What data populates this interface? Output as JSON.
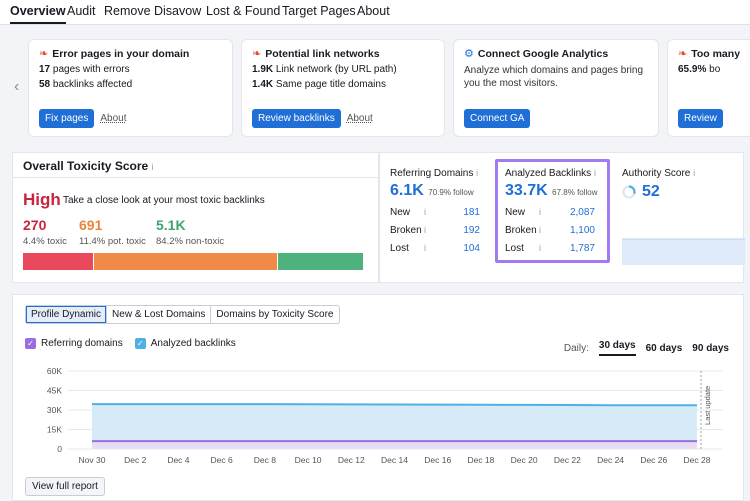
{
  "nav": {
    "tabs": [
      {
        "label": "Overview",
        "active": true
      },
      {
        "label": "Audit"
      },
      {
        "label": "Remove"
      },
      {
        "label": "Disavow"
      },
      {
        "label": "Lost & Found"
      },
      {
        "label": "Target Pages"
      },
      {
        "label": "About"
      }
    ]
  },
  "cards": [
    {
      "title": "Error pages in your domain",
      "icon": "fire-icon",
      "line1_num": "17",
      "line1_text": " pages with errors",
      "line2_num": "58",
      "line2_text": " backlinks affected",
      "button": "Fix pages",
      "about": "About"
    },
    {
      "title": "Potential link networks",
      "icon": "fire-icon",
      "line1_num": "1.9K",
      "line1_text": " Link network (by URL path)",
      "line2_num": "1.4K",
      "line2_text": " Same page title domains",
      "button": "Review backlinks",
      "about": "About"
    },
    {
      "title": "Connect Google Analytics",
      "icon": "gear-icon",
      "text": "Analyze which domains and pages bring you the most visitors.",
      "button": "Connect GA"
    },
    {
      "title": "Too many",
      "icon": "fire-icon",
      "line1_num": "65.9%",
      "line1_text": " bo",
      "button": "Review"
    }
  ],
  "toxicity": {
    "title": "Overall Toxicity Score",
    "info": "i",
    "level": "High",
    "desc": "Take a close look at your most toxic backlinks",
    "stats": [
      {
        "value": "270",
        "label": "4.4% toxic",
        "color": "#c8243d"
      },
      {
        "value": "691",
        "label": "11.4% pot. toxic",
        "color": "#e8863d"
      },
      {
        "value": "5.1K",
        "label": "84.2% non-toxic",
        "color": "#3fa56e"
      }
    ],
    "bar": [
      {
        "fraction": 0.21,
        "color": "#e8495d"
      },
      {
        "fraction": 0.54,
        "color": "#ef8a47"
      },
      {
        "fraction": 0.25,
        "color": "#4eb27c"
      }
    ]
  },
  "referring_domains": {
    "title": "Referring Domains",
    "info": "i",
    "value": "6.1K",
    "follow": "70.9% follow",
    "rows": [
      {
        "label": "New",
        "info": "i",
        "value": "181"
      },
      {
        "label": "Broken",
        "info": "i",
        "value": "192"
      },
      {
        "label": "Lost",
        "info": "i",
        "value": "104"
      }
    ]
  },
  "analyzed_backlinks": {
    "title": "Analyzed Backlinks",
    "info": "i",
    "value": "33.7K",
    "follow": "67.8% follow",
    "rows": [
      {
        "label": "New",
        "info": "i",
        "value": "2,087"
      },
      {
        "label": "Broken",
        "info": "i",
        "value": "1,100"
      },
      {
        "label": "Lost",
        "info": "i",
        "value": "1,787"
      }
    ]
  },
  "authority": {
    "title": "Authority Score",
    "info": "i",
    "value": "52"
  },
  "chart_panel": {
    "tabs": [
      {
        "label": "Profile Dynamic",
        "active": true
      },
      {
        "label": "New & Lost Domains"
      },
      {
        "label": "Domains by Toxicity Score"
      }
    ],
    "legend": [
      {
        "label": "Referring domains",
        "color": "#9b6ee0"
      },
      {
        "label": "Analyzed backlinks",
        "color": "#4fb1e3"
      }
    ],
    "period_label": "Daily:",
    "periods": [
      {
        "label": "30 days",
        "active": true
      },
      {
        "label": "60 days"
      },
      {
        "label": "90 days"
      }
    ],
    "view_report": "View full report",
    "last_update": "Last update"
  },
  "chart_data": {
    "type": "area",
    "x": [
      "Nov 30",
      "Dec 2",
      "Dec 4",
      "Dec 6",
      "Dec 8",
      "Dec 10",
      "Dec 12",
      "Dec 14",
      "Dec 16",
      "Dec 18",
      "Dec 20",
      "Dec 22",
      "Dec 24",
      "Dec 26",
      "Dec 28"
    ],
    "yticks": [
      "0",
      "15K",
      "30K",
      "45K",
      "60K"
    ],
    "ylim": [
      0,
      60000
    ],
    "grid": true,
    "series": [
      {
        "name": "Analyzed backlinks",
        "color": "#4fb1e3",
        "values": [
          34500,
          34500,
          34500,
          34500,
          34500,
          34400,
          34300,
          34200,
          34100,
          34000,
          33900,
          33800,
          33700,
          33700,
          33700
        ]
      },
      {
        "name": "Referring domains",
        "color": "#9b6ee0",
        "values": [
          6100,
          6100,
          6100,
          6100,
          6100,
          6100,
          6100,
          6100,
          6100,
          6100,
          6100,
          6100,
          6100,
          6100,
          6100
        ]
      }
    ]
  }
}
